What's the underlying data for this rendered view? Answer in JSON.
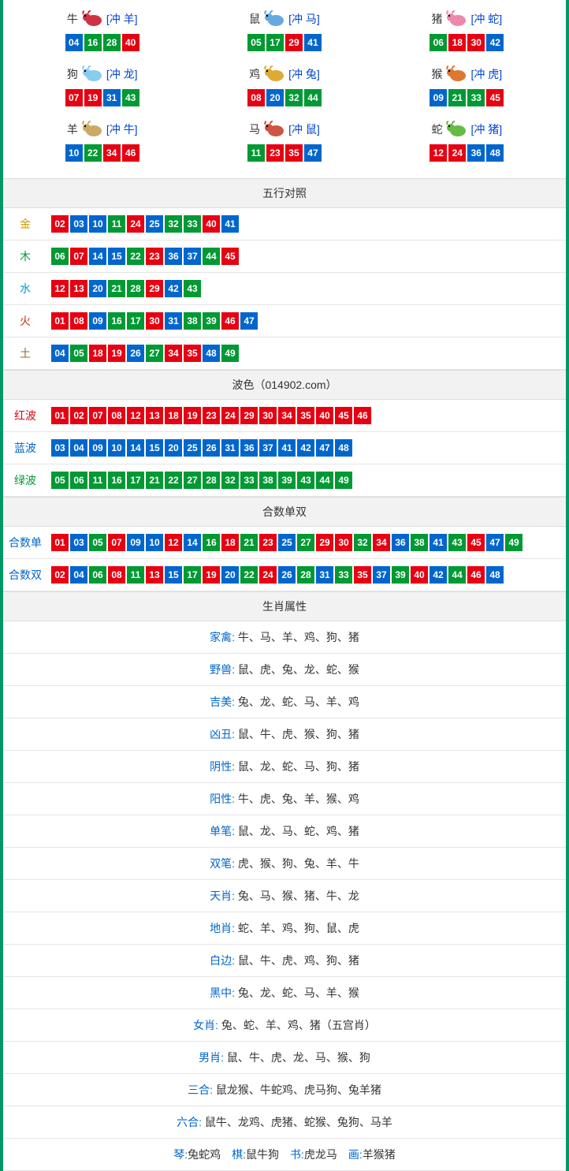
{
  "colors": {
    "red": "#e60012",
    "blue": "#0066cc",
    "green": "#009933",
    "border": "#009966",
    "hdr_bg": "#f2f2f2"
  },
  "numColorMap": {
    "01": "red",
    "02": "red",
    "07": "red",
    "08": "red",
    "12": "red",
    "13": "red",
    "18": "red",
    "19": "red",
    "23": "red",
    "24": "red",
    "29": "red",
    "30": "red",
    "34": "red",
    "35": "red",
    "40": "red",
    "45": "red",
    "46": "red",
    "03": "blue",
    "04": "blue",
    "09": "blue",
    "10": "blue",
    "14": "blue",
    "15": "blue",
    "20": "blue",
    "25": "blue",
    "26": "blue",
    "31": "blue",
    "36": "blue",
    "37": "blue",
    "41": "blue",
    "42": "blue",
    "47": "blue",
    "48": "blue",
    "05": "green",
    "06": "green",
    "11": "green",
    "16": "green",
    "17": "green",
    "21": "green",
    "22": "green",
    "27": "green",
    "28": "green",
    "32": "green",
    "33": "green",
    "38": "green",
    "39": "green",
    "43": "green",
    "44": "green",
    "49": "green"
  },
  "zodiac": [
    {
      "name": "牛",
      "conflict": "[冲 羊]",
      "nums": [
        "04",
        "16",
        "28",
        "40"
      ],
      "icon": "ox",
      "iconColor": "#cc3344"
    },
    {
      "name": "鼠",
      "conflict": "[冲 马]",
      "nums": [
        "05",
        "17",
        "29",
        "41"
      ],
      "icon": "rat",
      "iconColor": "#66aadd"
    },
    {
      "name": "猪",
      "conflict": "[冲 蛇]",
      "nums": [
        "06",
        "18",
        "30",
        "42"
      ],
      "icon": "pig",
      "iconColor": "#ee88aa"
    },
    {
      "name": "狗",
      "conflict": "[冲 龙]",
      "nums": [
        "07",
        "19",
        "31",
        "43"
      ],
      "icon": "dog",
      "iconColor": "#88ccee"
    },
    {
      "name": "鸡",
      "conflict": "[冲 兔]",
      "nums": [
        "08",
        "20",
        "32",
        "44"
      ],
      "icon": "rooster",
      "iconColor": "#ddaa33"
    },
    {
      "name": "猴",
      "conflict": "[冲 虎]",
      "nums": [
        "09",
        "21",
        "33",
        "45"
      ],
      "icon": "monkey",
      "iconColor": "#dd7733"
    },
    {
      "name": "羊",
      "conflict": "[冲 牛]",
      "nums": [
        "10",
        "22",
        "34",
        "46"
      ],
      "icon": "goat",
      "iconColor": "#ccaa66"
    },
    {
      "name": "马",
      "conflict": "[冲 鼠]",
      "nums": [
        "11",
        "23",
        "35",
        "47"
      ],
      "icon": "horse",
      "iconColor": "#cc5544"
    },
    {
      "name": "蛇",
      "conflict": "[冲 猪]",
      "nums": [
        "12",
        "24",
        "36",
        "48"
      ],
      "icon": "snake",
      "iconColor": "#66bb44"
    }
  ],
  "sections": {
    "wuxing": {
      "title": "五行对照",
      "rows": [
        {
          "label": "金",
          "cls": "lbl-gold",
          "nums": [
            "02",
            "03",
            "10",
            "11",
            "24",
            "25",
            "32",
            "33",
            "40",
            "41"
          ]
        },
        {
          "label": "木",
          "cls": "lbl-wood",
          "nums": [
            "06",
            "07",
            "14",
            "15",
            "22",
            "23",
            "36",
            "37",
            "44",
            "45"
          ]
        },
        {
          "label": "水",
          "cls": "lbl-water",
          "nums": [
            "12",
            "13",
            "20",
            "21",
            "28",
            "29",
            "42",
            "43"
          ]
        },
        {
          "label": "火",
          "cls": "lbl-fire",
          "nums": [
            "01",
            "08",
            "09",
            "16",
            "17",
            "30",
            "31",
            "38",
            "39",
            "46",
            "47"
          ]
        },
        {
          "label": "土",
          "cls": "lbl-earth",
          "nums": [
            "04",
            "05",
            "18",
            "19",
            "26",
            "27",
            "34",
            "35",
            "48",
            "49"
          ]
        }
      ]
    },
    "bose": {
      "title": "波色（014902.com）",
      "rows": [
        {
          "label": "红波",
          "cls": "lbl-red",
          "nums": [
            "01",
            "02",
            "07",
            "08",
            "12",
            "13",
            "18",
            "19",
            "23",
            "24",
            "29",
            "30",
            "34",
            "35",
            "40",
            "45",
            "46"
          ]
        },
        {
          "label": "蓝波",
          "cls": "lbl-blue",
          "nums": [
            "03",
            "04",
            "09",
            "10",
            "14",
            "15",
            "20",
            "25",
            "26",
            "31",
            "36",
            "37",
            "41",
            "42",
            "47",
            "48"
          ]
        },
        {
          "label": "绿波",
          "cls": "lbl-green",
          "nums": [
            "05",
            "06",
            "11",
            "16",
            "17",
            "21",
            "22",
            "27",
            "28",
            "32",
            "33",
            "38",
            "39",
            "43",
            "44",
            "49"
          ]
        }
      ]
    },
    "heshu": {
      "title": "合数单双",
      "rows": [
        {
          "label": "合数单",
          "cls": "lbl-blue",
          "nums": [
            "01",
            "03",
            "05",
            "07",
            "09",
            "10",
            "12",
            "14",
            "16",
            "18",
            "21",
            "23",
            "25",
            "27",
            "29",
            "30",
            "32",
            "34",
            "36",
            "38",
            "41",
            "43",
            "45",
            "47",
            "49"
          ]
        },
        {
          "label": "合数双",
          "cls": "lbl-blue",
          "nums": [
            "02",
            "04",
            "06",
            "08",
            "11",
            "13",
            "15",
            "17",
            "19",
            "20",
            "22",
            "24",
            "26",
            "28",
            "31",
            "33",
            "35",
            "37",
            "39",
            "40",
            "42",
            "44",
            "46",
            "48"
          ]
        }
      ]
    },
    "attrs": {
      "title": "生肖属性",
      "rows": [
        {
          "key": "家禽",
          "val": "牛、马、羊、鸡、狗、猪"
        },
        {
          "key": "野兽",
          "val": "鼠、虎、兔、龙、蛇、猴"
        },
        {
          "key": "吉美",
          "val": "兔、龙、蛇、马、羊、鸡"
        },
        {
          "key": "凶丑",
          "val": "鼠、牛、虎、猴、狗、猪"
        },
        {
          "key": "阴性",
          "val": "鼠、龙、蛇、马、狗、猪"
        },
        {
          "key": "阳性",
          "val": "牛、虎、兔、羊、猴、鸡"
        },
        {
          "key": "单笔",
          "val": "鼠、龙、马、蛇、鸡、猪"
        },
        {
          "key": "双笔",
          "val": "虎、猴、狗、兔、羊、牛"
        },
        {
          "key": "天肖",
          "val": "兔、马、猴、猪、牛、龙"
        },
        {
          "key": "地肖",
          "val": "蛇、羊、鸡、狗、鼠、虎"
        },
        {
          "key": "白边",
          "val": "鼠、牛、虎、鸡、狗、猪"
        },
        {
          "key": "黑中",
          "val": "兔、龙、蛇、马、羊、猴"
        },
        {
          "key": "女肖",
          "val": "兔、蛇、羊、鸡、猪（五宫肖）"
        },
        {
          "key": "男肖",
          "val": "鼠、牛、虎、龙、马、猴、狗"
        },
        {
          "key": "三合",
          "val": "鼠龙猴、牛蛇鸡、虎马狗、兔羊猪"
        },
        {
          "key": "六合",
          "val": "鼠牛、龙鸡、虎猪、蛇猴、兔狗、马羊"
        }
      ],
      "footer": {
        "parts": [
          {
            "k": "琴",
            "v": "兔蛇鸡"
          },
          {
            "k": "棋",
            "v": "鼠牛狗"
          },
          {
            "k": "书",
            "v": "虎龙马"
          },
          {
            "k": "画",
            "v": "羊猴猪"
          }
        ]
      }
    }
  }
}
